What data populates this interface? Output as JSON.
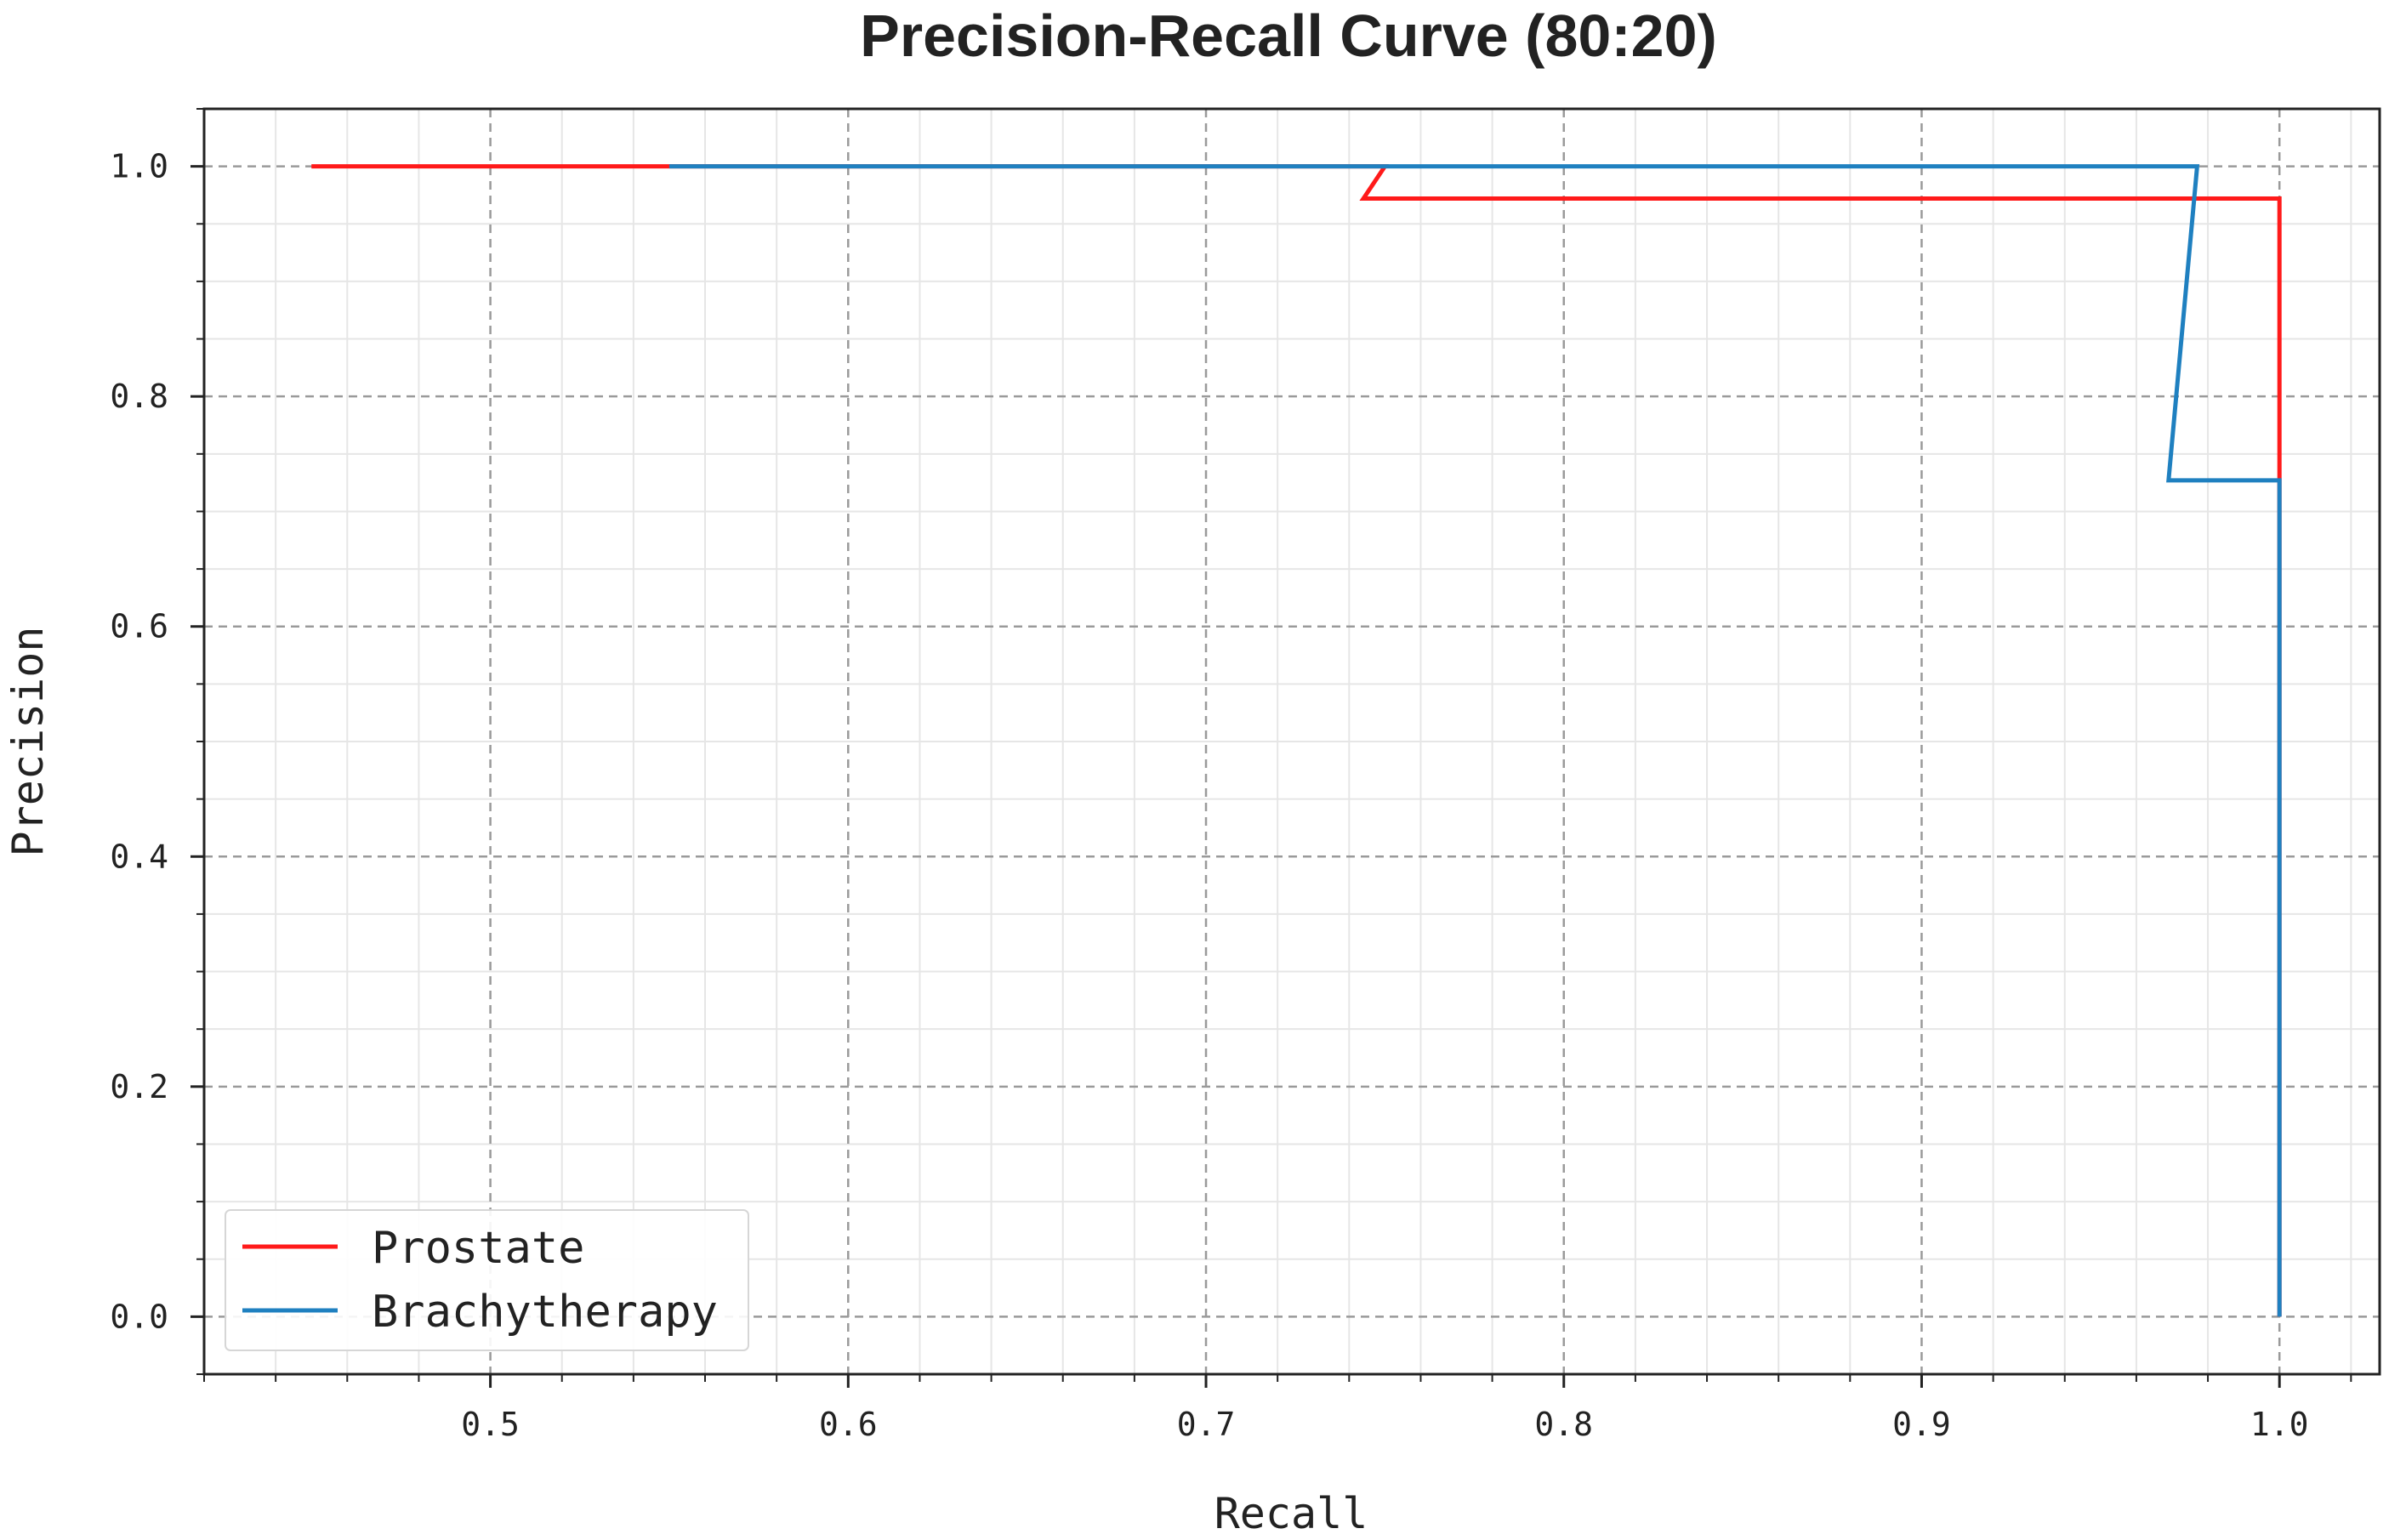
{
  "chart_data": {
    "type": "line",
    "title": "Precision-Recall Curve (80:20)",
    "xlabel": "Recall",
    "ylabel": "Precision",
    "xlim": [
      0.42,
      1.028
    ],
    "ylim": [
      -0.05,
      1.05
    ],
    "xticks": [
      {
        "value": 0.5,
        "label": "0.5"
      },
      {
        "value": 0.6,
        "label": "0.6"
      },
      {
        "value": 0.7,
        "label": "0.7"
      },
      {
        "value": 0.8,
        "label": "0.8"
      },
      {
        "value": 0.9,
        "label": "0.9"
      },
      {
        "value": 1.0,
        "label": "1.0"
      }
    ],
    "yticks": [
      {
        "value": 0.0,
        "label": "0.0"
      },
      {
        "value": 0.2,
        "label": "0.2"
      },
      {
        "value": 0.4,
        "label": "0.4"
      },
      {
        "value": 0.6,
        "label": "0.6"
      },
      {
        "value": 0.8,
        "label": "0.8"
      },
      {
        "value": 1.0,
        "label": "1.0"
      }
    ],
    "x_minor_step": 0.02,
    "y_minor_step": 0.05,
    "grid": true,
    "legend_position": "lower-left",
    "series": [
      {
        "name": "Prostate",
        "color": "#ff1a1a",
        "points": [
          [
            0.45,
            1.0
          ],
          [
            0.75,
            1.0
          ],
          [
            0.744,
            0.972
          ],
          [
            1.0,
            0.972
          ],
          [
            1.0,
            0.727
          ],
          [
            1.0,
            0.0
          ]
        ]
      },
      {
        "name": "Brachytherapy",
        "color": "#1f80c0",
        "points": [
          [
            0.55,
            1.0
          ],
          [
            0.977,
            1.0
          ],
          [
            0.969,
            0.727
          ],
          [
            1.0,
            0.727
          ],
          [
            1.0,
            0.0
          ]
        ]
      }
    ]
  }
}
